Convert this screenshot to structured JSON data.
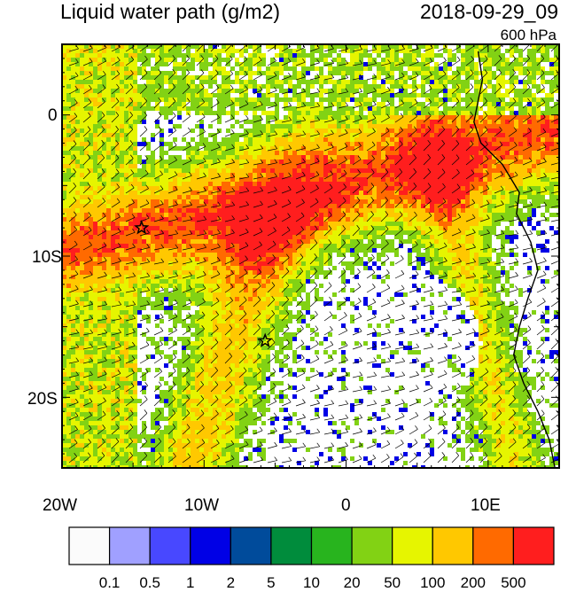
{
  "header": {
    "title": "Liquid water path (g/m2)",
    "datetime": "2018-09-29_09",
    "level": "600 hPa"
  },
  "axes": {
    "lat_labels": [
      "0",
      "10S",
      "20S"
    ],
    "lon_labels": [
      "20W",
      "10W",
      "0",
      "10E"
    ],
    "lat_values": [
      0,
      -10,
      -20
    ],
    "lon_values": [
      -20,
      -10,
      0,
      10
    ],
    "lon_range": [
      -20,
      15
    ],
    "lat_range": [
      -25,
      5
    ]
  },
  "colorbar": {
    "labels": [
      "0.1",
      "0.5",
      "1",
      "2",
      "5",
      "10",
      "20",
      "50",
      "100",
      "200",
      "500"
    ],
    "colors": [
      "#fbfbfb",
      "#a0a0ff",
      "#4848ff",
      "#0000e6",
      "#004b9b",
      "#008c3c",
      "#28b41e",
      "#82d214",
      "#e6f500",
      "#ffc800",
      "#ff6a00",
      "#ff1e1e"
    ]
  },
  "markers": [
    {
      "name": "star-1",
      "lon": -14.4,
      "lat": -8.0
    },
    {
      "name": "star-2",
      "lon": -5.7,
      "lat": -16.0
    }
  ]
}
